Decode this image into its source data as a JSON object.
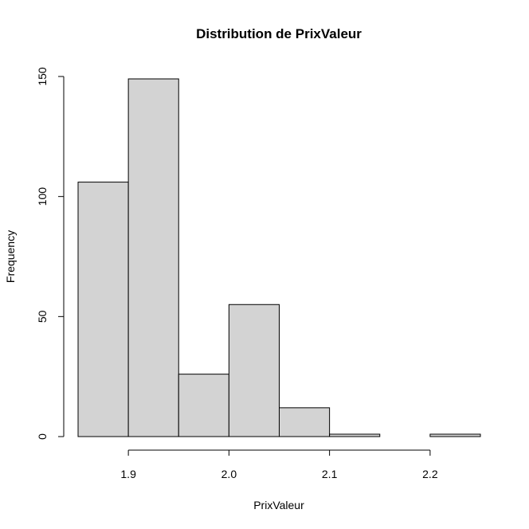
{
  "chart_data": {
    "type": "bar",
    "title": "Distribution de PrixValeur",
    "xlabel": "PrixValeur",
    "ylabel": "Frequency",
    "bins": [
      {
        "start": 1.85,
        "end": 1.9,
        "count": 106
      },
      {
        "start": 1.9,
        "end": 1.95,
        "count": 149
      },
      {
        "start": 1.95,
        "end": 2.0,
        "count": 26
      },
      {
        "start": 2.0,
        "end": 2.05,
        "count": 55
      },
      {
        "start": 2.05,
        "end": 2.1,
        "count": 12
      },
      {
        "start": 2.1,
        "end": 2.15,
        "count": 1
      },
      {
        "start": 2.15,
        "end": 2.2,
        "count": 0
      },
      {
        "start": 2.2,
        "end": 2.25,
        "count": 1
      }
    ],
    "x_ticks": [
      {
        "value": 1.9,
        "label": "1.9"
      },
      {
        "value": 2.0,
        "label": "2.0"
      },
      {
        "value": 2.1,
        "label": "2.1"
      },
      {
        "value": 2.2,
        "label": "2.2"
      }
    ],
    "y_ticks": [
      {
        "value": 0,
        "label": "0"
      },
      {
        "value": 50,
        "label": "50"
      },
      {
        "value": 100,
        "label": "100"
      },
      {
        "value": 150,
        "label": "150"
      }
    ],
    "xlim": [
      1.85,
      2.25
    ],
    "ylim": [
      0,
      150
    ],
    "grid": false,
    "bar_color": "#d3d3d3",
    "edge_color": "#000000"
  }
}
